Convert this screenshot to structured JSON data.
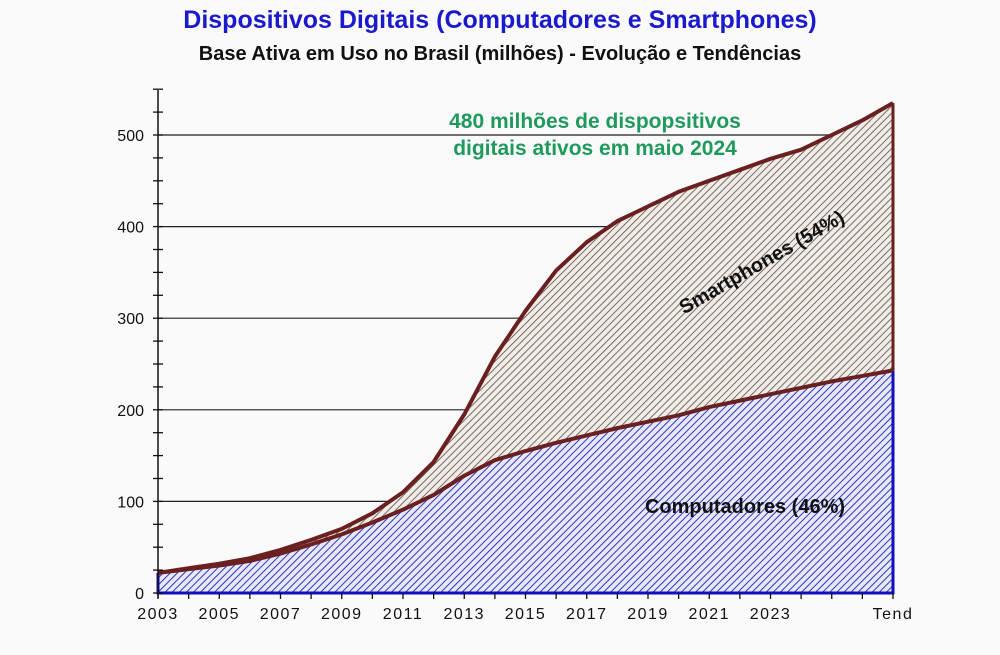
{
  "chart_data": {
    "type": "area",
    "title": "Dispositivos Digitais (Computadores e Smartphones)",
    "subtitle": "Base Ativa em Uso no Brasil (milhões) - Evolução e Tendências",
    "xlabel": "",
    "ylabel": "",
    "ylim": [
      0,
      550
    ],
    "yticks": [
      0,
      100,
      200,
      300,
      400,
      500
    ],
    "x": [
      "2003",
      "2004",
      "2005",
      "2006",
      "2007",
      "2008",
      "2009",
      "2010",
      "2011",
      "2012",
      "2013",
      "2014",
      "2015",
      "2016",
      "2017",
      "2018",
      "2019",
      "2020",
      "2021",
      "2022",
      "2023",
      "2024",
      "2025",
      "2026",
      "Tend"
    ],
    "xtick_labels": [
      "2003",
      "2005",
      "2007",
      "2009",
      "2011",
      "2013",
      "2015",
      "2017",
      "2019",
      "2021",
      "2023",
      "Tend"
    ],
    "stacked": true,
    "series": [
      {
        "name": "Computadores (46%)",
        "color": "#2b2bb8",
        "fill": "#c8ccf2",
        "values": [
          22,
          26,
          30,
          35,
          43,
          53,
          64,
          77,
          91,
          107,
          128,
          145,
          155,
          164,
          172,
          180,
          187,
          194,
          203,
          210,
          217,
          224,
          231,
          237,
          243
        ]
      },
      {
        "name": "Smartphones (54%)",
        "color": "#6b2020",
        "fill": "#ddd6d0",
        "total": [
          22,
          27,
          32,
          38,
          47,
          58,
          70,
          87,
          110,
          143,
          195,
          258,
          308,
          352,
          383,
          406,
          422,
          438,
          450,
          462,
          474,
          484,
          500,
          516,
          535
        ]
      }
    ],
    "annotations": [
      "480 milhões de dispopsitivos",
      "digitais ativos em maio 2024"
    ],
    "grid": true,
    "legend": "none"
  }
}
